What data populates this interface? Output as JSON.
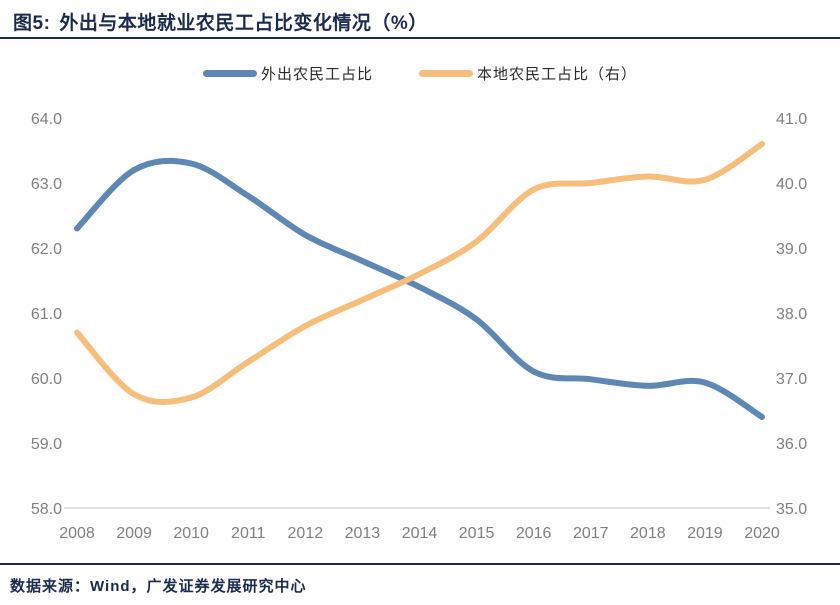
{
  "header": {
    "figure_label": "图5:",
    "title": "外出与本地就业农民工占比变化情况（%）"
  },
  "footer": {
    "source": "数据来源：Wind，广发证券发展研究中心"
  },
  "colors": {
    "outbound_line": "#5E87B4",
    "local_line": "#F5BE7C",
    "title_navy": "#1B2B4D",
    "axis_text": "#7F7F7F",
    "axis_line": "#D9D9D9"
  },
  "chart_data": {
    "type": "line",
    "title": "图5: 外出与本地就业农民工占比变化情况（%）",
    "smooth": true,
    "grid": false,
    "legend_position": "top",
    "categories": [
      "2008",
      "2009",
      "2010",
      "2011",
      "2012",
      "2013",
      "2014",
      "2015",
      "2016",
      "2017",
      "2018",
      "2019",
      "2020"
    ],
    "series": [
      {
        "name": "外出农民工占比",
        "axis": "left",
        "color": "#5E87B4",
        "values": [
          62.3,
          63.2,
          63.3,
          62.8,
          62.2,
          61.8,
          61.4,
          60.9,
          60.1,
          59.98,
          59.88,
          59.93,
          59.4
        ]
      },
      {
        "name": "本地农民工占比（右）",
        "axis": "right",
        "color": "#F5BE7C",
        "values": [
          37.7,
          36.75,
          36.7,
          37.25,
          37.8,
          38.2,
          38.6,
          39.1,
          39.9,
          40.0,
          40.1,
          40.05,
          40.6
        ]
      }
    ],
    "left_axis": {
      "min": 58.0,
      "max": 64.0,
      "step": 1.0,
      "ticks": [
        "58.0",
        "59.0",
        "60.0",
        "61.0",
        "62.0",
        "63.0",
        "64.0"
      ]
    },
    "right_axis": {
      "min": 35.0,
      "max": 41.0,
      "step": 1.0,
      "ticks": [
        "35.0",
        "36.0",
        "37.0",
        "38.0",
        "39.0",
        "40.0",
        "41.0"
      ]
    }
  }
}
